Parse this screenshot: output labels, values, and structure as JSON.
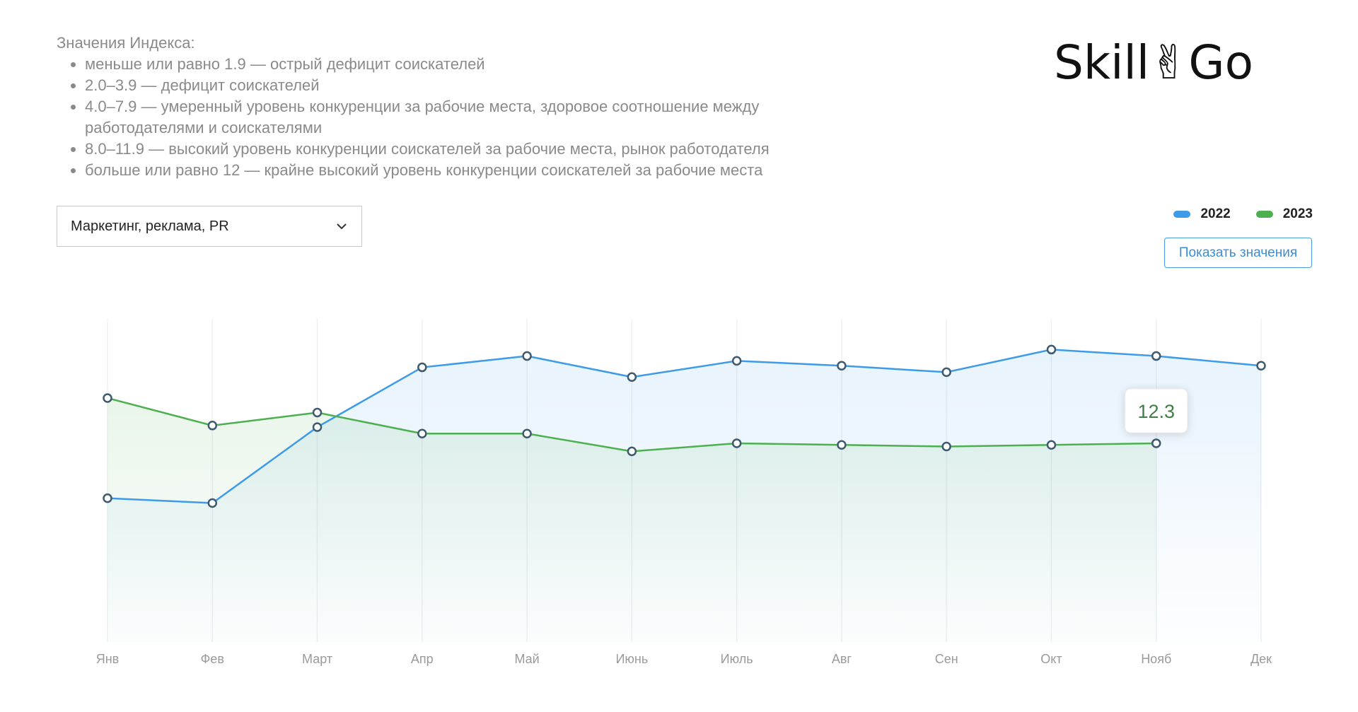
{
  "info": {
    "title": "Значения Индекса:",
    "items": [
      "меньше или равно 1.9 — острый дефицит соискателей",
      "2.0–3.9 — дефицит соискателей",
      "4.0–7.9 — умеренный уровень конкуренции за рабочие места, здоровое соотношение между работодателями и соискателями",
      "8.0–11.9 — высокий уровень конкуренции соискателей за рабочие места, рынок работодателя",
      "больше или равно 12 — крайне высокий уровень конкуренции соискателей за рабочие места"
    ]
  },
  "dropdown": {
    "selected": "Маркетинг, реклама, PR"
  },
  "logo": "Skill✌Go",
  "button": "Показать значения",
  "chart_data": {
    "type": "line",
    "categories": [
      "Янв",
      "Фев",
      "Март",
      "Апр",
      "Май",
      "Июнь",
      "Июль",
      "Авг",
      "Сен",
      "Окт",
      "Нояб",
      "Дек"
    ],
    "series": [
      {
        "name": "2022",
        "color": "#3d9be9",
        "values": [
          8.9,
          8.6,
          13.3,
          17.0,
          17.7,
          16.4,
          17.4,
          17.1,
          16.7,
          18.1,
          17.7,
          17.1
        ]
      },
      {
        "name": "2023",
        "color": "#4caf50",
        "values": [
          15.1,
          13.4,
          14.2,
          12.9,
          12.9,
          11.8,
          12.3,
          12.2,
          12.1,
          12.2,
          12.3,
          null
        ]
      }
    ],
    "ylim": [
      0,
      20
    ],
    "grid": true
  }
}
